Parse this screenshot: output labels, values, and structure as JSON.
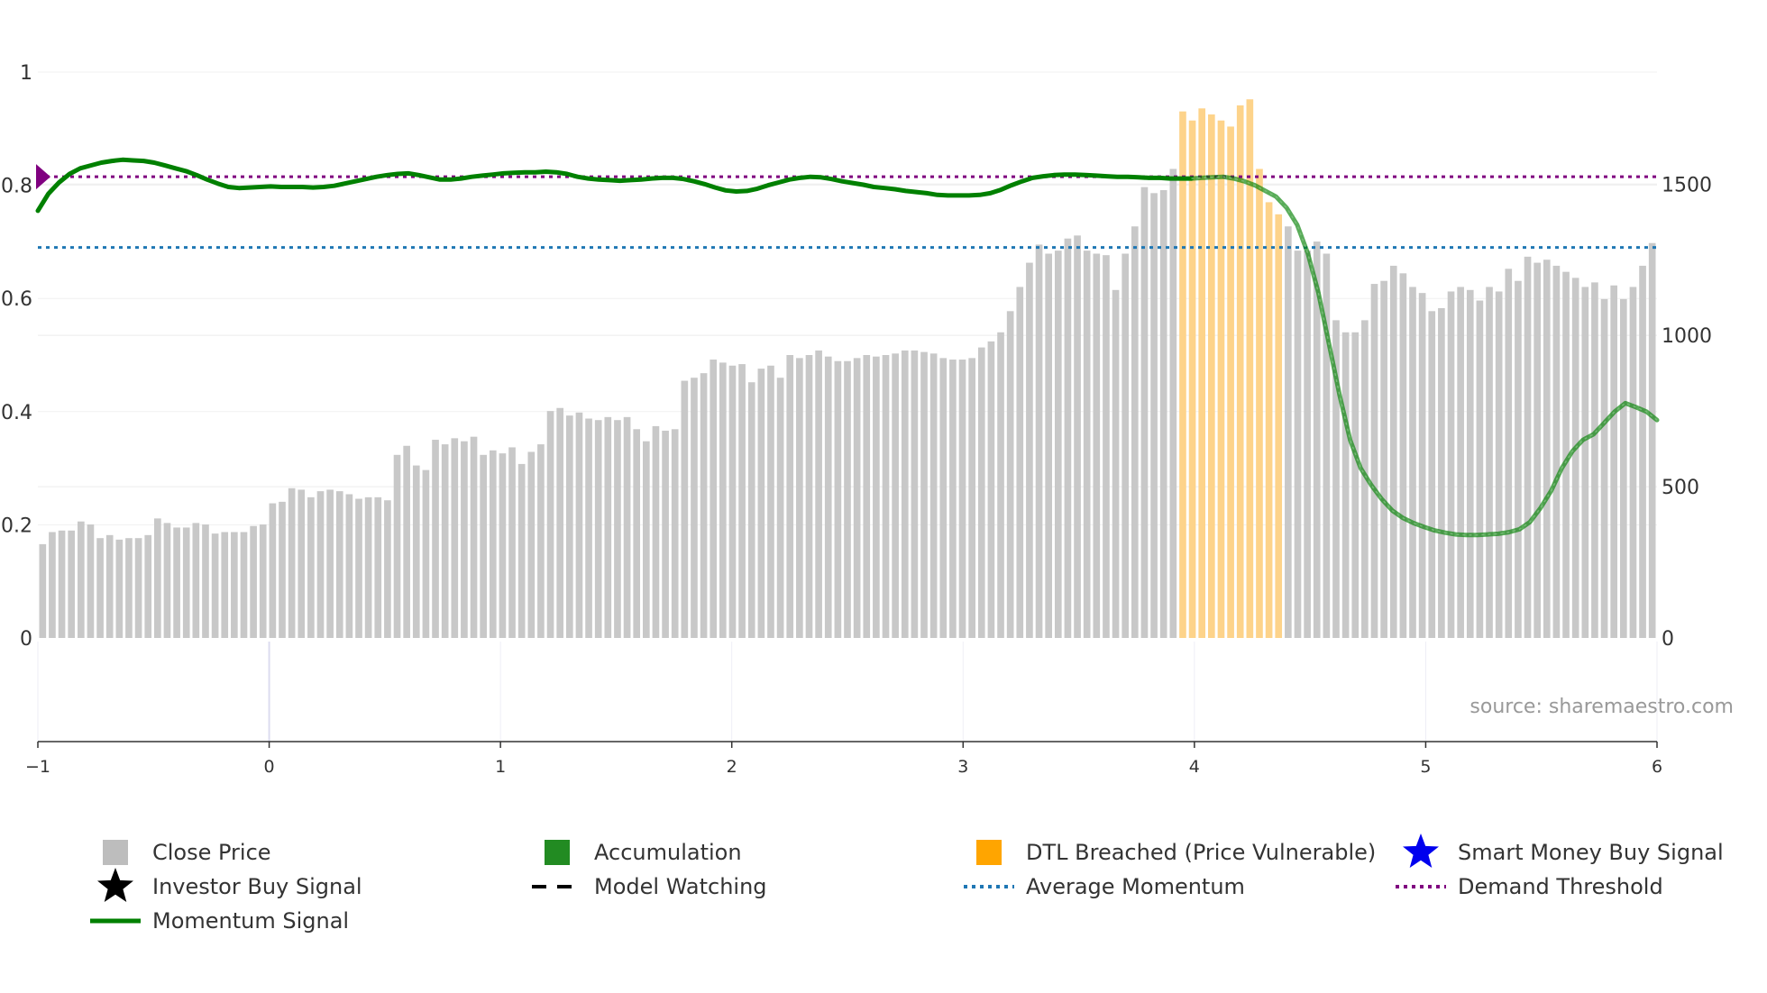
{
  "chart_data": {
    "type": "bar",
    "source": "source: sharemaestro.com",
    "x_ticks": [
      "−1",
      "0",
      "1",
      "2",
      "3",
      "4",
      "5",
      "6"
    ],
    "x_tick_values": [
      -1,
      0,
      1,
      2,
      3,
      4,
      5,
      6
    ],
    "xlim": [
      -1,
      6
    ],
    "y_left_ticks": [
      "0",
      "0.2",
      "0.4",
      "0.6",
      "0.8",
      "1"
    ],
    "y_left_tick_values": [
      0,
      0.2,
      0.4,
      0.6,
      0.8,
      1
    ],
    "y_left_lim": [
      0,
      1
    ],
    "y_right_ticks": [
      "0",
      "500",
      "1000",
      "1500"
    ],
    "y_right_tick_values": [
      0,
      500,
      1000,
      1500
    ],
    "y_right_lim": [
      0,
      1870
    ],
    "close_price": [
      310,
      350,
      355,
      355,
      385,
      375,
      330,
      340,
      325,
      330,
      330,
      340,
      395,
      380,
      365,
      365,
      380,
      375,
      345,
      350,
      350,
      350,
      370,
      375,
      445,
      450,
      495,
      490,
      465,
      485,
      490,
      485,
      475,
      460,
      465,
      465,
      455,
      605,
      635,
      570,
      555,
      655,
      640,
      660,
      650,
      665,
      605,
      620,
      610,
      630,
      575,
      615,
      640,
      750,
      760,
      735,
      745,
      725,
      720,
      730,
      720,
      730,
      690,
      650,
      700,
      685,
      690,
      850,
      860,
      875,
      920,
      910,
      900,
      905,
      845,
      890,
      900,
      860,
      935,
      925,
      935,
      950,
      930,
      915,
      915,
      925,
      935,
      930,
      935,
      940,
      950,
      950,
      945,
      940,
      925,
      920,
      920,
      925,
      960,
      980,
      1010,
      1080,
      1160,
      1240,
      1300,
      1270,
      1280,
      1320,
      1330,
      1280,
      1270,
      1265,
      1150,
      1270,
      1360,
      1490,
      1470,
      1480,
      1550,
      1740,
      1710,
      1750,
      1730,
      1710,
      1690,
      1760,
      1780,
      1550,
      1440,
      1400,
      1360,
      1280,
      1280,
      1310,
      1270,
      1050,
      1010,
      1010,
      1050,
      1170,
      1180,
      1230,
      1205,
      1160,
      1140,
      1080,
      1090,
      1145,
      1160,
      1150,
      1115,
      1160,
      1145,
      1220,
      1180,
      1260,
      1240,
      1250,
      1230,
      1210,
      1190,
      1160,
      1175,
      1120,
      1165,
      1120,
      1160,
      1230,
      1305
    ],
    "dtl_breached_range": [
      119,
      129
    ],
    "momentum_signal": [
      0.755,
      0.785,
      0.805,
      0.82,
      0.83,
      0.835,
      0.84,
      0.843,
      0.845,
      0.844,
      0.843,
      0.84,
      0.835,
      0.83,
      0.825,
      0.818,
      0.81,
      0.803,
      0.797,
      0.795,
      0.796,
      0.797,
      0.798,
      0.797,
      0.797,
      0.797,
      0.796,
      0.797,
      0.799,
      0.803,
      0.807,
      0.811,
      0.815,
      0.818,
      0.82,
      0.821,
      0.818,
      0.814,
      0.81,
      0.81,
      0.812,
      0.815,
      0.817,
      0.819,
      0.821,
      0.822,
      0.823,
      0.823,
      0.824,
      0.823,
      0.82,
      0.815,
      0.812,
      0.81,
      0.809,
      0.808,
      0.809,
      0.81,
      0.812,
      0.813,
      0.813,
      0.811,
      0.807,
      0.802,
      0.796,
      0.791,
      0.789,
      0.79,
      0.794,
      0.8,
      0.805,
      0.81,
      0.813,
      0.815,
      0.814,
      0.811,
      0.807,
      0.804,
      0.801,
      0.797,
      0.795,
      0.793,
      0.79,
      0.788,
      0.786,
      0.783,
      0.782,
      0.782,
      0.782,
      0.783,
      0.786,
      0.792,
      0.8,
      0.807,
      0.813,
      0.816,
      0.818,
      0.819,
      0.819,
      0.818,
      0.817,
      0.816,
      0.815,
      0.815,
      0.814,
      0.813,
      0.813,
      0.812,
      0.812,
      0.812,
      0.813,
      0.814,
      0.815,
      0.812,
      0.807,
      0.8,
      0.79,
      0.78,
      0.76,
      0.73,
      0.68,
      0.61,
      0.52,
      0.43,
      0.35,
      0.3,
      0.27,
      0.245,
      0.225,
      0.212,
      0.203,
      0.196,
      0.19,
      0.186,
      0.183,
      0.182,
      0.182,
      0.183,
      0.184,
      0.187,
      0.192,
      0.205,
      0.23,
      0.26,
      0.3,
      0.33,
      0.35,
      0.36,
      0.38,
      0.4,
      0.415,
      0.408,
      0.4,
      0.385
    ],
    "momentum_faded_from_index": 120,
    "average_momentum": 0.69,
    "demand_threshold": 0.815,
    "legend": [
      {
        "label": "Close Price",
        "swatch": "square",
        "color": "#bdbdbd"
      },
      {
        "label": "Accumulation",
        "swatch": "square",
        "color": "#228b22"
      },
      {
        "label": "DTL Breached (Price Vulnerable)",
        "swatch": "square",
        "color": "#ffa500"
      },
      {
        "label": "Smart Money Buy Signal",
        "swatch": "star",
        "color": "#0000ee"
      },
      {
        "label": "Investor Buy Signal",
        "swatch": "star",
        "color": "#000000"
      },
      {
        "label": "Model Watching",
        "swatch": "dash",
        "color": "#000000"
      },
      {
        "label": "Average Momentum",
        "swatch": "dot",
        "color": "#1f77b4"
      },
      {
        "label": "Demand Threshold",
        "swatch": "dot",
        "color": "#800080"
      },
      {
        "label": "Momentum Signal",
        "swatch": "line",
        "color": "#008000"
      }
    ],
    "colors": {
      "close_bar": "#c8c8c8",
      "dtl_bar": "#fdd38a",
      "momentum": "#008000",
      "average_momentum": "#1f77b4",
      "demand_threshold": "#800080",
      "marker": "#800080",
      "grid": "#ececec",
      "axis": "#333333",
      "source_text": "#999999"
    }
  }
}
